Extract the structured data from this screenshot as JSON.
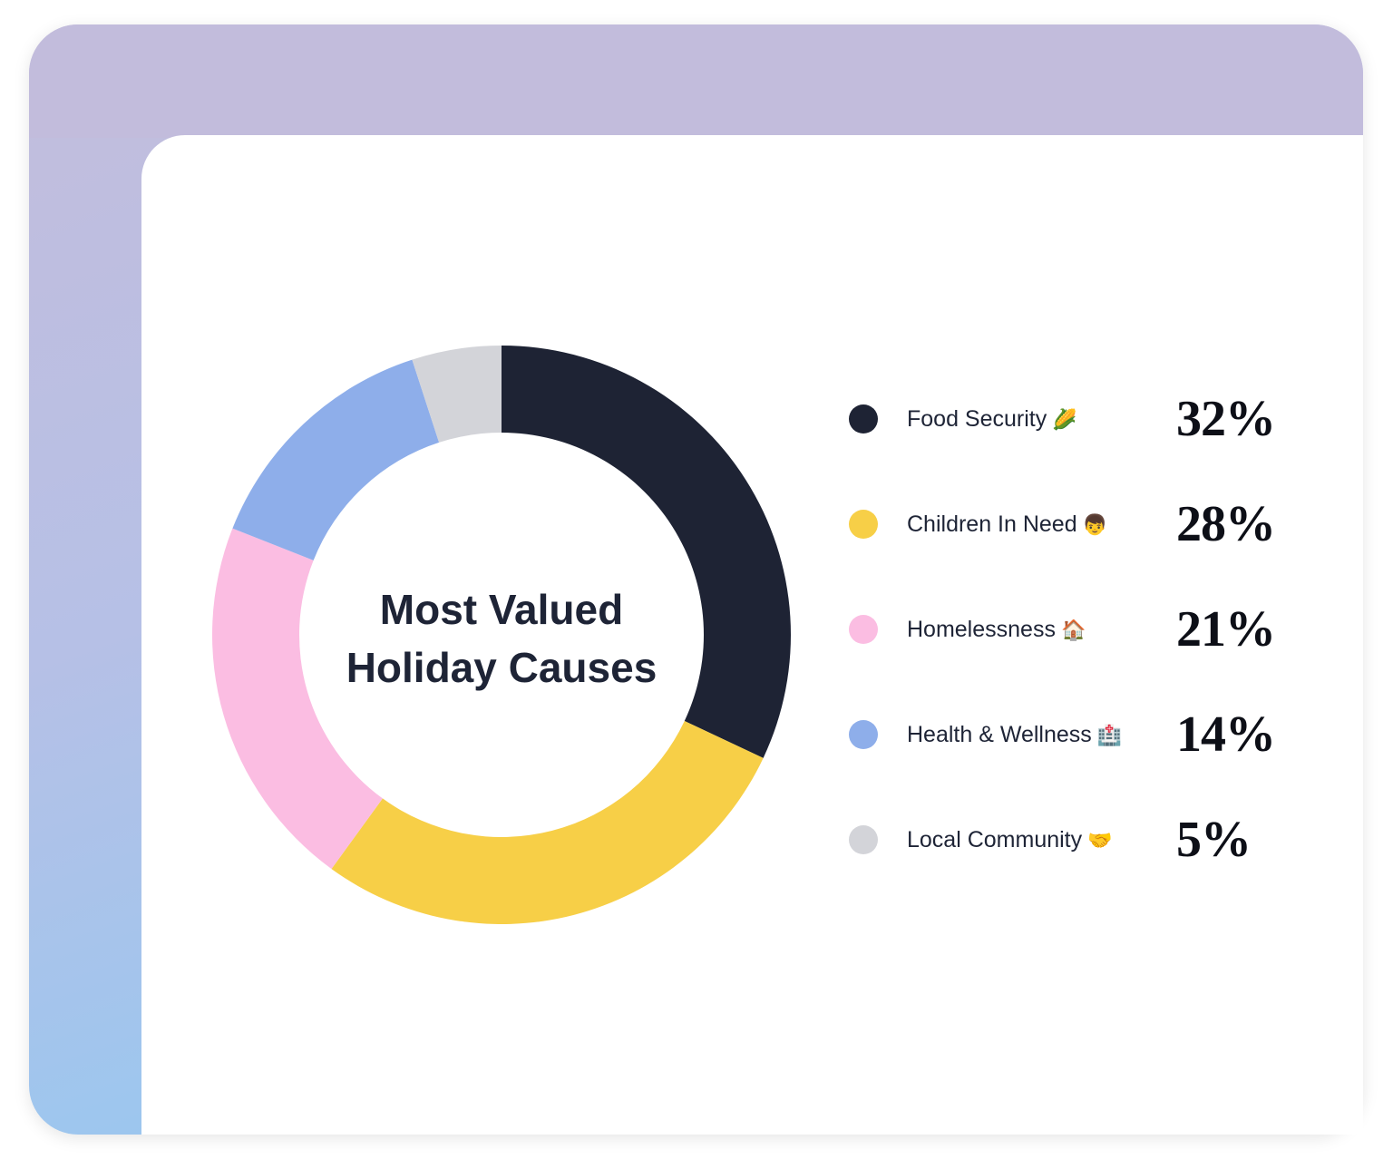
{
  "chart_data": {
    "type": "pie",
    "donut": true,
    "title": "Most Valued Holiday Causes",
    "categories": [
      "Food Security",
      "Children In Need",
      "Homelessness",
      "Health & Wellness",
      "Local Community"
    ],
    "values": [
      32,
      28,
      21,
      14,
      5
    ],
    "value_labels": [
      "32%",
      "28%",
      "21%",
      "14%",
      "5%"
    ],
    "emojis": [
      "🌽",
      "👦",
      "🏠",
      "🏥",
      "🤝"
    ],
    "colors": [
      "#1e2334",
      "#f7cf47",
      "#fbbde2",
      "#8eaeea",
      "#d3d4d9"
    ],
    "legend_position": "right"
  }
}
